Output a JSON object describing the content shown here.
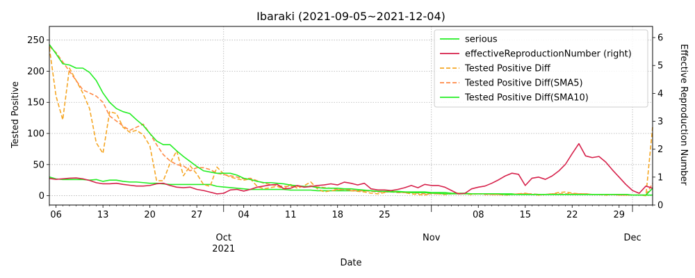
{
  "chart_data": {
    "type": "line",
    "title": "Ibaraki (2021-09-05~2021-12-04)",
    "xlabel": "Date",
    "ylabel": "Tested Positive",
    "y2label": "Effective Reproduction Number",
    "x_range": [
      "2021-09-05",
      "2021-12-04"
    ],
    "ylim": [
      -15,
      272
    ],
    "y2lim": [
      0,
      6.4
    ],
    "y_ticks": [
      0,
      50,
      100,
      150,
      200,
      250
    ],
    "y2_ticks": [
      0,
      1,
      2,
      3,
      4,
      5,
      6
    ],
    "x_ticks": [
      {
        "date": "2021-09-06",
        "label": "06"
      },
      {
        "date": "2021-09-13",
        "label": "13"
      },
      {
        "date": "2021-09-20",
        "label": "20"
      },
      {
        "date": "2021-09-27",
        "label": "27"
      },
      {
        "date": "2021-10-01",
        "label": "Oct\n2021"
      },
      {
        "date": "2021-10-04",
        "label": "04"
      },
      {
        "date": "2021-10-11",
        "label": "11"
      },
      {
        "date": "2021-10-18",
        "label": "18"
      },
      {
        "date": "2021-10-25",
        "label": "25"
      },
      {
        "date": "2021-11-01",
        "label": "Nov"
      },
      {
        "date": "2021-11-08",
        "label": "08"
      },
      {
        "date": "2021-11-15",
        "label": "15"
      },
      {
        "date": "2021-11-22",
        "label": "22"
      },
      {
        "date": "2021-11-29",
        "label": "29"
      },
      {
        "date": "2021-12-01",
        "label": "Dec"
      }
    ],
    "grid": true,
    "legend_position": "top-right",
    "start_date": "2021-09-05",
    "series": [
      {
        "name": "serious",
        "axis": "left",
        "color": "#22ee22",
        "style": "solid",
        "values": [
          30,
          27,
          26,
          26,
          26,
          26,
          25,
          26,
          23,
          25,
          25,
          23,
          22,
          22,
          21,
          20,
          20,
          19,
          18,
          18,
          18,
          18,
          18,
          18,
          18,
          15,
          14,
          13,
          12,
          11,
          10,
          10,
          10,
          10,
          10,
          10,
          9,
          9,
          9,
          9,
          8,
          8,
          8,
          8,
          8,
          8,
          8,
          8,
          8,
          7,
          7,
          7,
          7,
          6,
          6,
          6,
          6,
          5,
          5,
          5,
          4,
          4,
          4,
          3,
          3,
          3,
          3,
          3,
          3,
          3,
          2,
          2,
          2,
          2,
          2,
          2,
          2,
          2,
          2,
          2,
          2,
          2,
          2,
          2,
          2,
          2,
          2,
          1,
          1,
          1,
          1
        ]
      },
      {
        "name": "effectiveReproductionNumber (right)",
        "axis": "right",
        "color": "#d6204a",
        "style": "solid",
        "values": [
          0.95,
          0.92,
          0.94,
          0.96,
          0.97,
          0.94,
          0.88,
          0.8,
          0.76,
          0.76,
          0.78,
          0.74,
          0.71,
          0.68,
          0.68,
          0.7,
          0.76,
          0.78,
          0.7,
          0.64,
          0.62,
          0.64,
          0.56,
          0.52,
          0.46,
          0.4,
          0.42,
          0.54,
          0.56,
          0.5,
          0.56,
          0.64,
          0.68,
          0.72,
          0.74,
          0.58,
          0.6,
          0.7,
          0.64,
          0.66,
          0.7,
          0.72,
          0.76,
          0.72,
          0.82,
          0.78,
          0.72,
          0.78,
          0.58,
          0.54,
          0.54,
          0.52,
          0.56,
          0.62,
          0.7,
          0.62,
          0.74,
          0.7,
          0.7,
          0.64,
          0.52,
          0.4,
          0.42,
          0.58,
          0.64,
          0.68,
          0.78,
          0.9,
          1.04,
          1.14,
          1.1,
          0.7,
          0.96,
          1.0,
          0.92,
          1.04,
          1.22,
          1.46,
          1.84,
          2.2,
          1.76,
          1.7,
          1.74,
          1.54,
          1.26,
          1.0,
          0.74,
          0.52,
          0.42,
          0.68,
          0.6
        ]
      },
      {
        "name": "Tested Positive Diff",
        "axis": "left",
        "color": "#f5a623",
        "style": "dashed",
        "values": [
          238,
          160,
          122,
          205,
          185,
          165,
          140,
          85,
          68,
          135,
          132,
          110,
          102,
          105,
          98,
          80,
          24,
          24,
          52,
          72,
          32,
          48,
          35,
          18,
          15,
          46,
          35,
          30,
          27,
          25,
          27,
          15,
          11,
          13,
          15,
          11,
          18,
          12,
          16,
          22,
          11,
          6,
          8,
          9,
          11,
          8,
          7,
          6,
          4,
          3,
          5,
          7,
          6,
          5,
          3,
          2,
          1,
          4,
          3,
          2,
          3,
          4,
          3,
          2,
          3,
          3,
          2,
          2,
          1,
          2,
          3,
          4,
          2,
          1,
          2,
          3,
          5,
          6,
          4,
          3,
          3,
          2,
          2,
          1,
          2,
          1,
          1,
          1,
          1,
          0,
          110
        ]
      },
      {
        "name": "Tested Positive Diff(SMA5)",
        "axis": "left",
        "color": "#ff8844",
        "style": "dashed",
        "values": [
          240,
          230,
          215,
          200,
          185,
          170,
          165,
          160,
          150,
          128,
          120,
          112,
          105,
          110,
          115,
          100,
          82,
          66,
          56,
          50,
          48,
          40,
          45,
          45,
          42,
          36,
          34,
          32,
          30,
          27,
          28,
          24,
          20,
          18,
          16,
          15,
          15,
          15,
          14,
          16,
          14,
          13,
          12,
          10,
          10,
          9,
          8,
          8,
          7,
          6,
          6,
          6,
          5,
          5,
          5,
          4,
          3,
          3,
          3,
          3,
          3,
          3,
          3,
          3,
          3,
          2,
          2,
          2,
          2,
          2,
          3,
          3,
          3,
          2,
          2,
          3,
          3,
          3,
          3,
          3,
          3,
          2,
          2,
          2,
          2,
          1,
          1,
          1,
          1,
          1,
          20
        ]
      },
      {
        "name": "Tested Positive Diff(SMA10)",
        "axis": "left",
        "color": "#22ee22",
        "style": "solid",
        "values": [
          243,
          228,
          212,
          210,
          205,
          205,
          198,
          185,
          165,
          150,
          140,
          135,
          132,
          122,
          113,
          100,
          88,
          82,
          82,
          72,
          63,
          55,
          47,
          40,
          38,
          36,
          36,
          36,
          33,
          28,
          26,
          23,
          21,
          21,
          20,
          19,
          17,
          16,
          15,
          15,
          13,
          12,
          12,
          12,
          11,
          11,
          10,
          9,
          8,
          7,
          7,
          6,
          6,
          6,
          5,
          5,
          5,
          4,
          4,
          3,
          3,
          3,
          3,
          3,
          3,
          3,
          3,
          3,
          2,
          2,
          2,
          2,
          2,
          2,
          2,
          2,
          2,
          2,
          2,
          2,
          2,
          2,
          2,
          2,
          2,
          2,
          2,
          1,
          1,
          1,
          12
        ]
      }
    ]
  }
}
